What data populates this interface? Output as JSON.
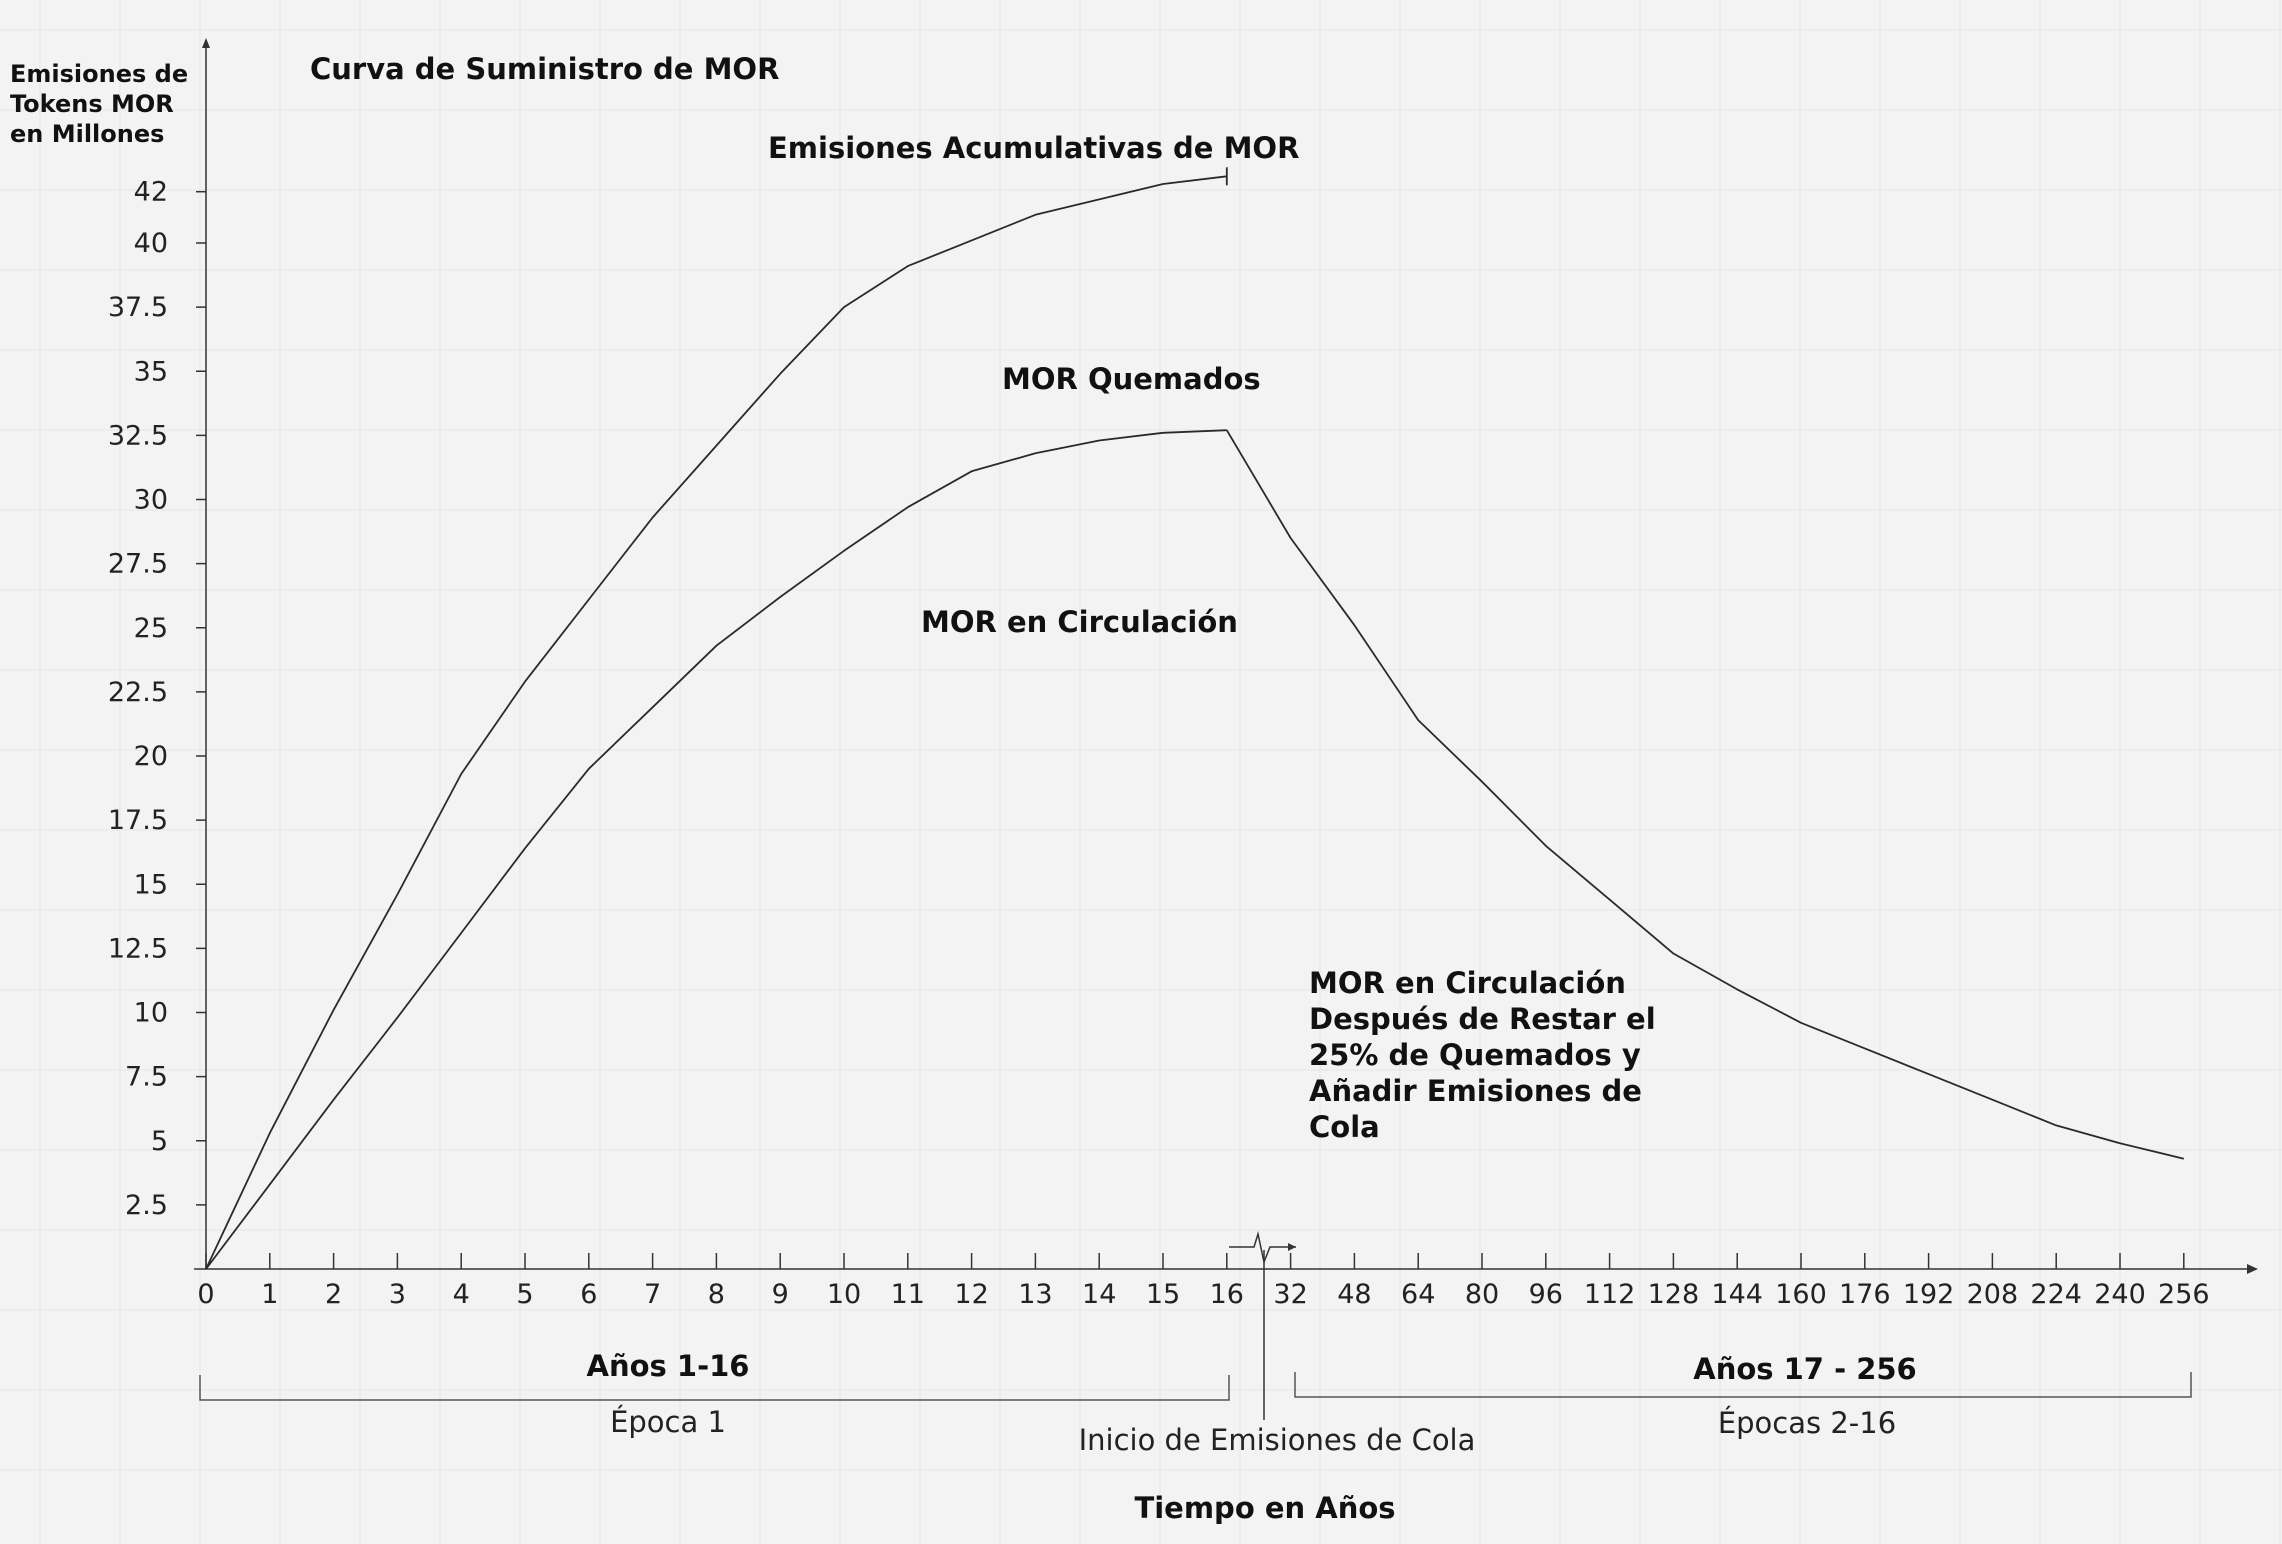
{
  "chart_data": {
    "type": "line",
    "title": "Curva de Suministro de MOR",
    "ylabel_lines": [
      "Emisiones de",
      "Tokens MOR",
      "en Millones"
    ],
    "xlabel": "Tiempo en Años",
    "ylim": [
      0,
      42
    ],
    "y_ticks": [
      "2.5",
      "5",
      "7.5",
      "10",
      "12.5",
      "15",
      "17.5",
      "20",
      "22.5",
      "25",
      "27.5",
      "30",
      "32.5",
      "35",
      "37.5",
      "40",
      "42"
    ],
    "y_tick_values": [
      2.5,
      5,
      7.5,
      10,
      12.5,
      15,
      17.5,
      20,
      22.5,
      25,
      27.5,
      30,
      32.5,
      35,
      37.5,
      40,
      42
    ],
    "x_tick_labels": [
      "0",
      "1",
      "2",
      "3",
      "4",
      "5",
      "6",
      "7",
      "8",
      "9",
      "10",
      "11",
      "12",
      "13",
      "14",
      "15",
      "16",
      "32",
      "48",
      "64",
      "80",
      "96",
      "112",
      "128",
      "144",
      "160",
      "176",
      "192",
      "208",
      "224",
      "240",
      "256"
    ],
    "x_tick_ordinals": [
      0,
      1,
      2,
      3,
      4,
      5,
      6,
      7,
      8,
      9,
      10,
      11,
      12,
      13,
      14,
      15,
      16,
      17,
      18,
      19,
      20,
      21,
      22,
      23,
      24,
      25,
      26,
      27,
      28,
      29,
      30,
      31
    ],
    "series": [
      {
        "name": "Emisiones Acumulativas de MOR",
        "x": [
          0,
          1,
          2,
          3,
          4,
          5,
          6,
          7,
          8,
          9,
          10,
          11,
          12,
          13,
          14,
          15,
          16
        ],
        "y": [
          0,
          5.3,
          10.1,
          14.6,
          19.3,
          22.9,
          26.1,
          29.3,
          32.1,
          34.9,
          37.5,
          39.1,
          40.1,
          41.1,
          41.7,
          42.3,
          42.6
        ],
        "end_cap": true
      },
      {
        "name": "MOR en Circulación",
        "x": [
          0,
          1,
          2,
          3,
          4,
          5,
          6,
          7,
          8,
          9,
          10,
          11,
          12,
          13,
          14,
          15,
          16
        ],
        "y": [
          0,
          3.3,
          6.6,
          9.8,
          13.1,
          16.4,
          19.5,
          21.9,
          24.3,
          26.2,
          28.0,
          29.7,
          31.1,
          31.8,
          32.3,
          32.6,
          32.7
        ]
      },
      {
        "name": "MOR en Circulación Después de Restar el 25% de Quemados y Añadir Emisiones de Cola",
        "x": [
          16,
          17,
          18,
          19,
          20,
          21,
          22,
          23,
          24,
          25,
          26,
          27,
          28,
          29,
          30,
          31
        ],
        "y": [
          32.7,
          28.5,
          25.1,
          21.4,
          19.0,
          16.5,
          14.4,
          12.3,
          10.9,
          9.6,
          8.6,
          7.6,
          6.6,
          5.6,
          4.9,
          4.3
        ]
      }
    ],
    "annotations": {
      "cumulative": "Emisiones Acumulativas de MOR",
      "burned": "MOR Quemados",
      "circulating": "MOR en Circulación",
      "after_burn_lines": [
        "MOR en Circulación",
        "Después de Restar el",
        "25% de Quemados y",
        "Añadir Emisiones de",
        "Cola"
      ]
    },
    "bracket_left": {
      "title": "Años 1-16",
      "sub": "Época 1"
    },
    "bracket_right": {
      "title": "Años 17 - 256",
      "sub": "Épocas 2-16"
    },
    "tail_marker": "Inicio de Emisiones de Cola",
    "grid": true
  }
}
